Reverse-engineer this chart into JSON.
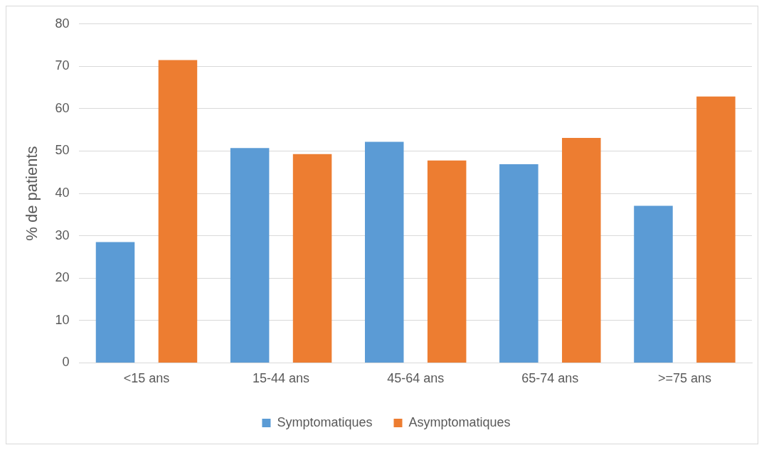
{
  "chart_data": {
    "type": "bar",
    "ylabel": "% de patients",
    "categories": [
      "<15 ans",
      "15-44 ans",
      "45-64 ans",
      "65-74 ans",
      ">=75 ans"
    ],
    "series": [
      {
        "name": "Symptomatiques",
        "color": "#5b9bd5",
        "values": [
          28.5,
          50.7,
          52.2,
          46.9,
          37.1
        ]
      },
      {
        "name": "Asymptomatiques",
        "color": "#ed7d31",
        "values": [
          71.5,
          49.3,
          47.8,
          53.1,
          62.9
        ]
      }
    ],
    "ylim": [
      0,
      80
    ],
    "yticks": [
      0,
      10,
      20,
      30,
      40,
      50,
      60,
      70,
      80
    ],
    "grid": "y",
    "legend": "bottom"
  }
}
